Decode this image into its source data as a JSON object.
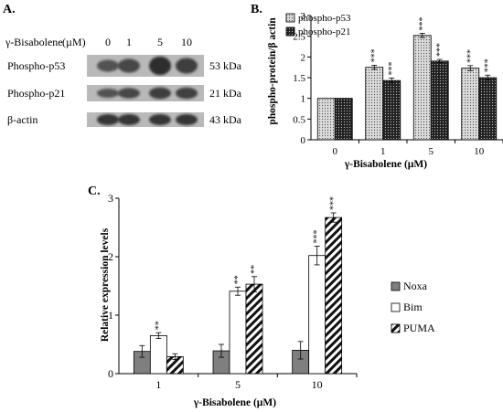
{
  "panels": {
    "a": {
      "letter": "A.",
      "header_label": "γ-Bisabolene",
      "header_unit": "(µM)",
      "lanes": [
        "0",
        "1",
        "5",
        "10"
      ],
      "rows": [
        {
          "label": "Phospho-p53",
          "size": "53 kDa",
          "intensity": [
            0.5,
            0.62,
            0.9,
            0.72
          ]
        },
        {
          "label": "Phospho-p21",
          "size": "21 kDa",
          "intensity": [
            0.5,
            0.62,
            0.72,
            0.7
          ]
        },
        {
          "label": "β-actin",
          "size": "43 kDa",
          "intensity": [
            0.8,
            0.8,
            0.8,
            0.8
          ]
        }
      ]
    }
  },
  "colors": {
    "bar_outline": "#000000",
    "p53_fill": "#d9d9d9",
    "p21_fill": "#222222",
    "noxa_fill": "#7f7f7f",
    "bim_fill": "#ffffff",
    "blot_bg": "#b9b9b9",
    "band": "#1a1a1a"
  },
  "chart_data": [
    {
      "panel": "B.",
      "type": "bar",
      "categories": [
        "0",
        "1",
        "5",
        "10"
      ],
      "series": [
        {
          "name": "phospho-p53",
          "values": [
            1.0,
            1.75,
            2.52,
            1.73
          ],
          "errors": [
            0.0,
            0.05,
            0.05,
            0.06
          ],
          "sig": [
            "",
            "***",
            "***",
            "***"
          ]
        },
        {
          "name": "phospho-p21",
          "values": [
            1.0,
            1.43,
            1.9,
            1.5
          ],
          "errors": [
            0.0,
            0.06,
            0.04,
            0.06
          ],
          "sig": [
            "",
            "***",
            "***",
            "***"
          ]
        }
      ],
      "xlabel": "γ-Bisabolene (µM)",
      "ylabel": "phospho-protein/β actin",
      "ylim": [
        0,
        3
      ],
      "yticks": [
        "0",
        "0.5",
        "1",
        "1.5",
        "2",
        "2.5",
        "3"
      ],
      "legend": "top-left",
      "grid": false
    },
    {
      "panel": "C.",
      "type": "bar",
      "categories": [
        "1",
        "5",
        "10"
      ],
      "series": [
        {
          "name": "Noxa",
          "values": [
            0.38,
            0.39,
            0.4
          ],
          "errors": [
            0.1,
            0.11,
            0.15
          ],
          "sig": [
            "",
            "",
            ""
          ]
        },
        {
          "name": "Bim",
          "values": [
            0.65,
            1.41,
            2.02
          ],
          "errors": [
            0.05,
            0.07,
            0.16
          ],
          "sig": [
            "**",
            "**",
            "***"
          ]
        },
        {
          "name": "PUMA",
          "values": [
            0.29,
            1.53,
            2.67
          ],
          "errors": [
            0.05,
            0.13,
            0.08
          ],
          "sig": [
            "",
            "**",
            "***"
          ]
        }
      ],
      "xlabel": "γ-Bisabolene (µM)",
      "ylabel": "Relative expression levels",
      "ylim": [
        0,
        3
      ],
      "yticks": [
        "0",
        "1",
        "2",
        "3"
      ],
      "legend": "right",
      "grid": false
    }
  ]
}
